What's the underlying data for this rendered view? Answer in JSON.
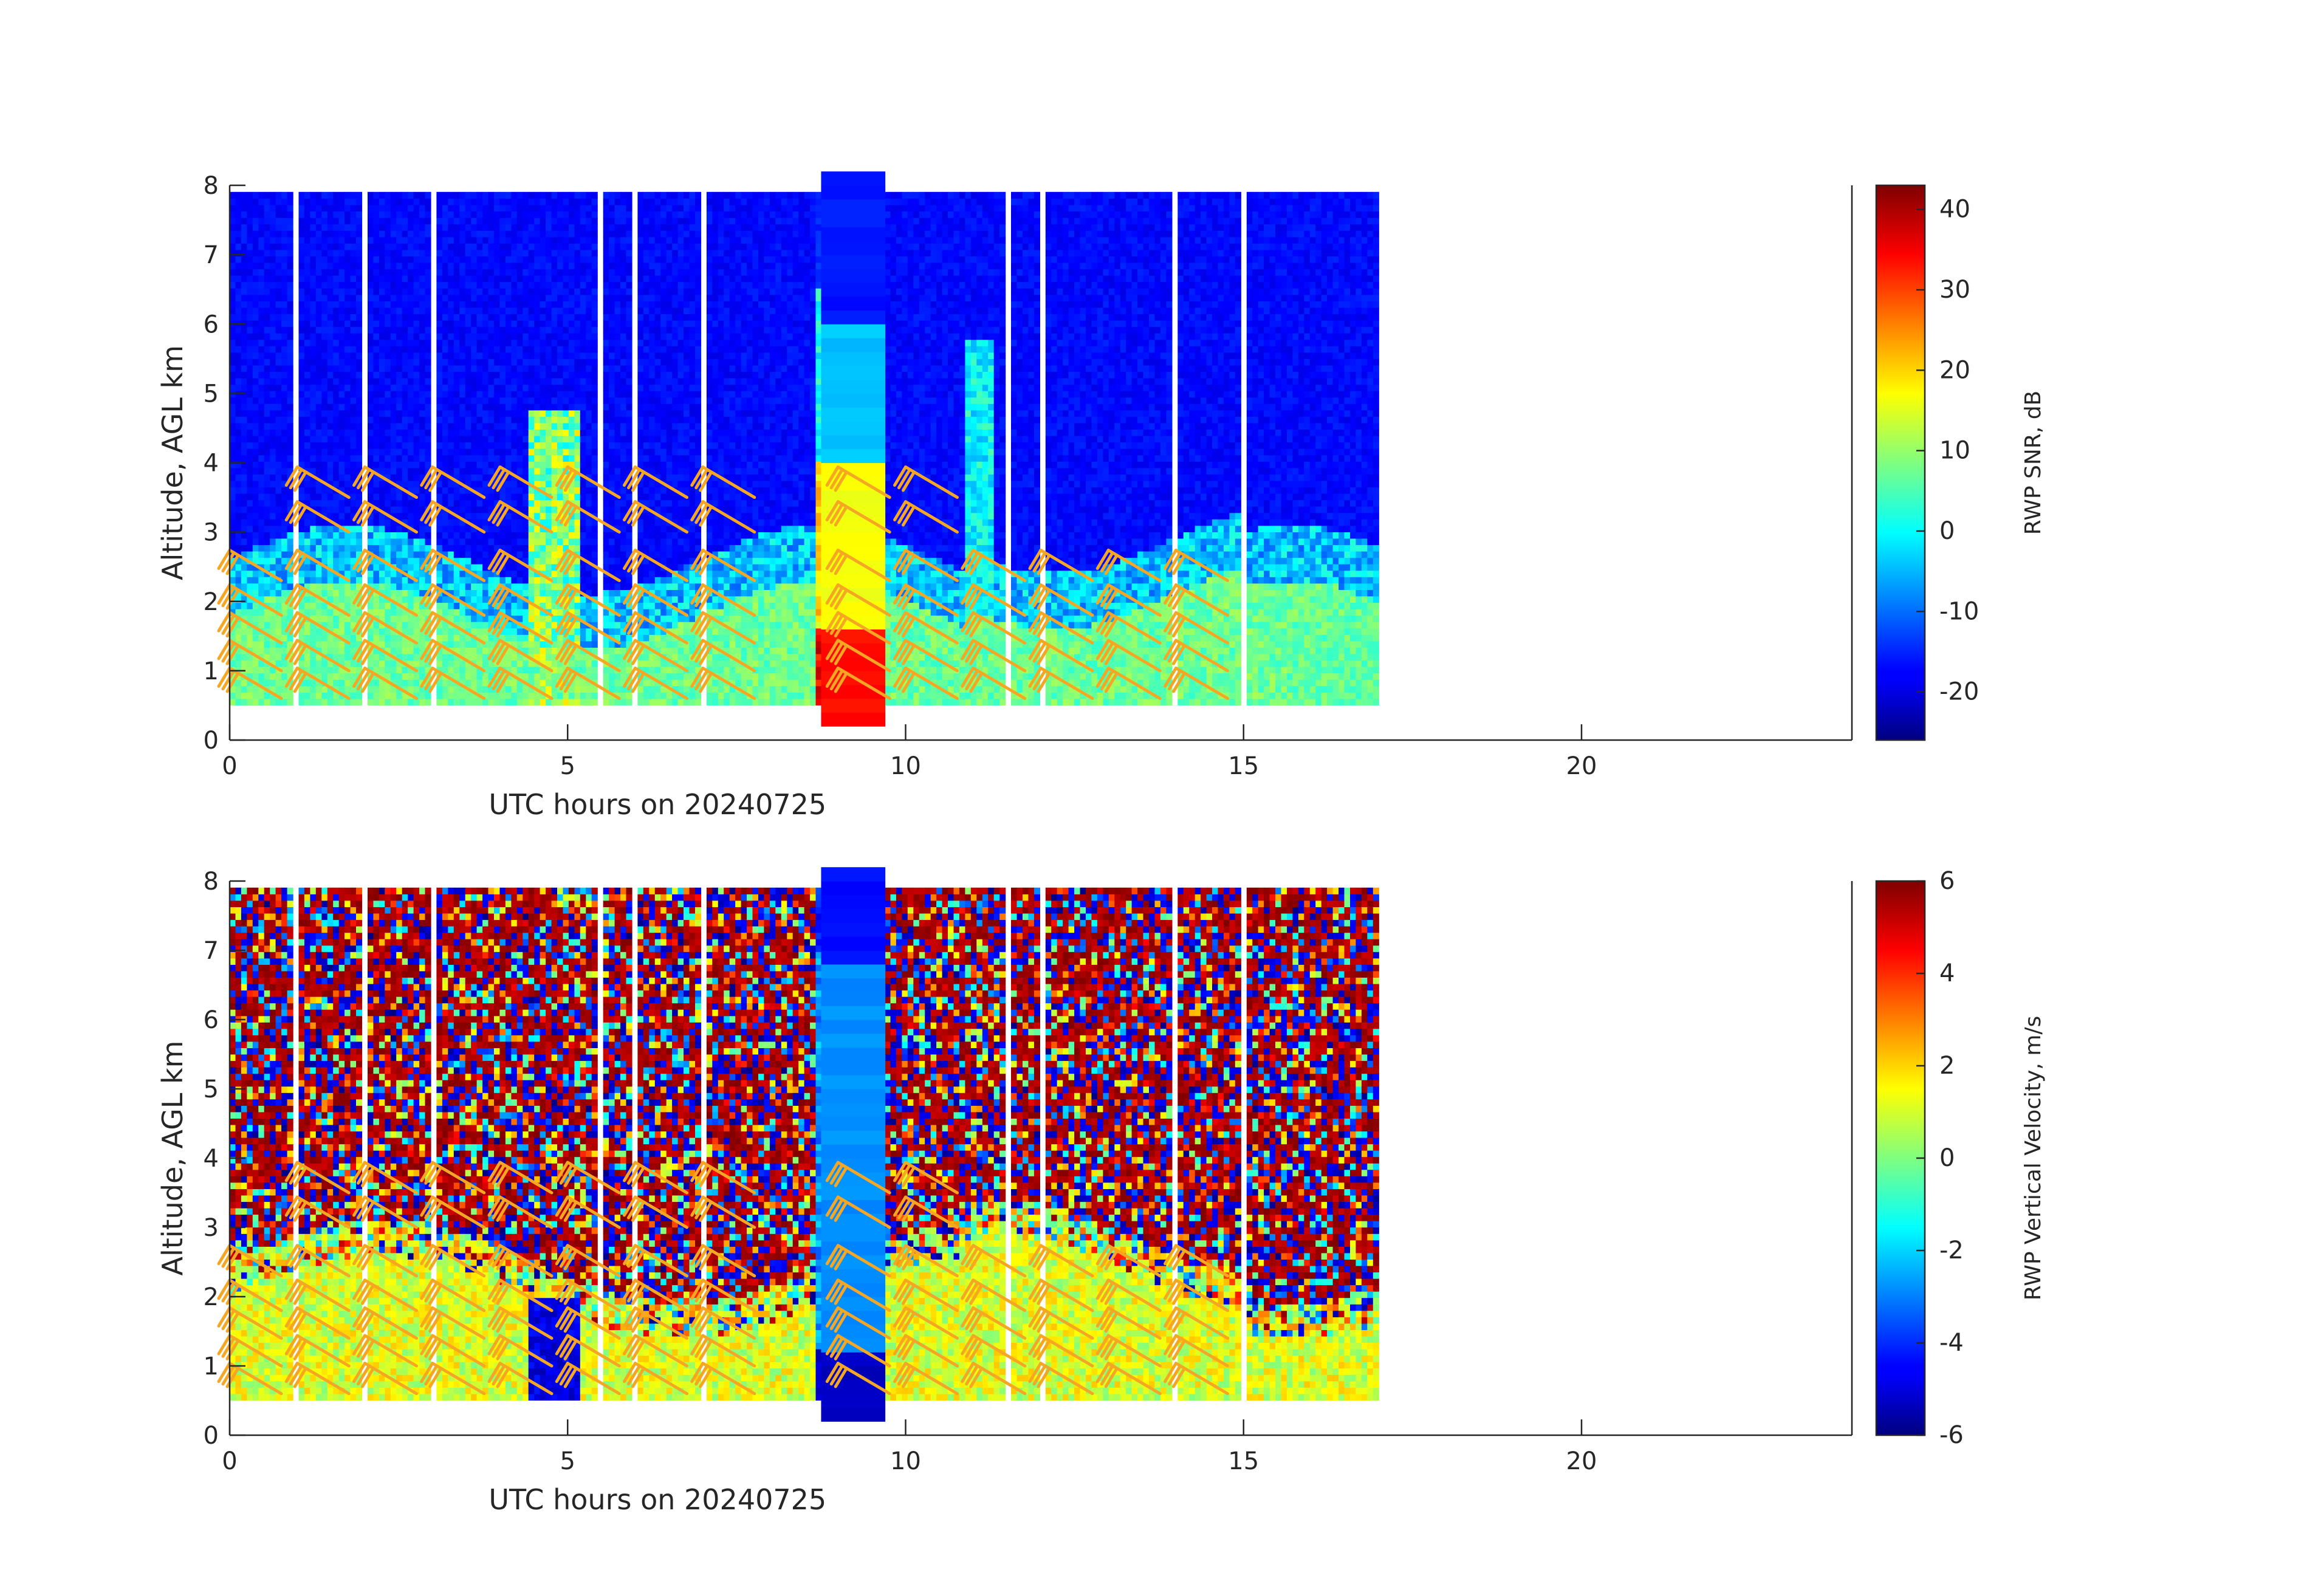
{
  "chart_data": [
    {
      "type": "heatmap",
      "title": "",
      "xlabel": "UTC hours on 20240725",
      "ylabel": "Altitude, AGL km",
      "colorbar_label": "RWP SNR, dB",
      "colormap": "jet",
      "xlim": [
        0,
        24
      ],
      "ylim": [
        0,
        8
      ],
      "clim": [
        -26,
        43
      ],
      "xticks": [
        0,
        5,
        10,
        15,
        20
      ],
      "yticks": [
        0,
        1,
        2,
        3,
        4,
        5,
        6,
        7,
        8
      ],
      "cticks": [
        -20,
        -10,
        0,
        10,
        20,
        30,
        40
      ],
      "data_time_range": [
        0,
        17
      ],
      "data_altitude_range": [
        0.5,
        7.9
      ],
      "overlay": "wind barbs (orange)"
    },
    {
      "type": "heatmap",
      "title": "",
      "xlabel": "UTC hours on 20240725",
      "ylabel": "Altitude, AGL km",
      "colorbar_label": "RWP Vertical Velocity, m/s",
      "colormap": "jet",
      "xlim": [
        0,
        24
      ],
      "ylim": [
        0,
        8
      ],
      "clim": [
        -6,
        6
      ],
      "xticks": [
        0,
        5,
        10,
        15,
        20
      ],
      "yticks": [
        0,
        1,
        2,
        3,
        4,
        5,
        6,
        7,
        8
      ],
      "cticks": [
        -6,
        -4,
        -2,
        0,
        2,
        4,
        6
      ],
      "data_time_range": [
        0,
        17
      ],
      "data_altitude_range": [
        0.5,
        7.9
      ],
      "overlay": "wind barbs (orange)"
    }
  ],
  "barb_times": [
    0,
    1,
    2,
    3,
    4,
    5,
    6,
    7,
    9,
    10,
    11,
    12,
    13,
    14
  ],
  "barb_color": "#f5a623"
}
